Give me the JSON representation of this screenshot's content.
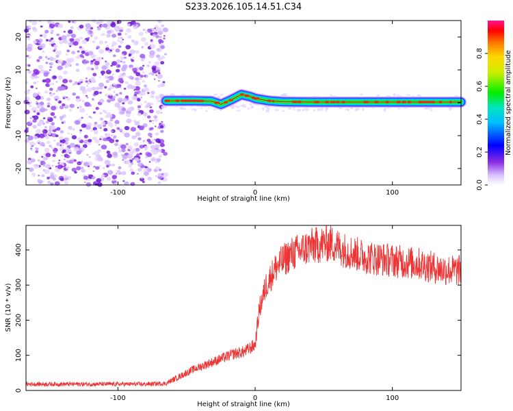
{
  "title": "S233.2026.105.14.51.C34",
  "chart_data": [
    {
      "id": "spectrogram",
      "type": "heatmap",
      "xlabel": "Height of straight line (km)",
      "ylabel": "Frequency (Hz)",
      "xlim": [
        -167,
        150
      ],
      "ylim": [
        -25,
        25
      ],
      "xticks": [
        -100,
        0,
        100
      ],
      "yticks": [
        -20,
        -10,
        0,
        10,
        20
      ],
      "noise_region_end_x": -65,
      "ridge": {
        "x": [
          -65,
          -45,
          -32,
          -25,
          -18,
          -10,
          -3,
          0,
          10,
          20,
          40,
          80,
          120,
          150
        ],
        "freq": [
          0.6,
          0.6,
          0.5,
          -0.5,
          0.8,
          2.5,
          1.8,
          1.3,
          0.6,
          0.3,
          0.2,
          0.2,
          0.2,
          0.2
        ]
      },
      "colorbar": {
        "label": "Normalized spectral amplitude",
        "ticks": [
          0.0,
          0.2,
          0.4,
          0.6,
          0.8
        ],
        "range": [
          0,
          1
        ]
      }
    },
    {
      "id": "snr",
      "type": "line",
      "xlabel": "Height of straight line (km)",
      "ylabel": "SNR (10 * v/v)",
      "xlim": [
        -167,
        150
      ],
      "ylim": [
        0,
        470
      ],
      "xticks": [
        -100,
        0,
        100
      ],
      "yticks": [
        0,
        100,
        200,
        300,
        400
      ],
      "color": "#ee3333",
      "series": [
        {
          "name": "SNR",
          "x": [
            -167,
            -140,
            -110,
            -80,
            -65,
            -55,
            -45,
            -35,
            -25,
            -15,
            -8,
            0,
            3,
            8,
            15,
            25,
            40,
            55,
            65,
            80,
            100,
            120,
            135,
            150
          ],
          "values": [
            18,
            18,
            18,
            18,
            20,
            40,
            60,
            75,
            90,
            105,
            110,
            130,
            230,
            300,
            350,
            385,
            410,
            420,
            400,
            380,
            370,
            360,
            345,
            340
          ]
        }
      ]
    }
  ]
}
